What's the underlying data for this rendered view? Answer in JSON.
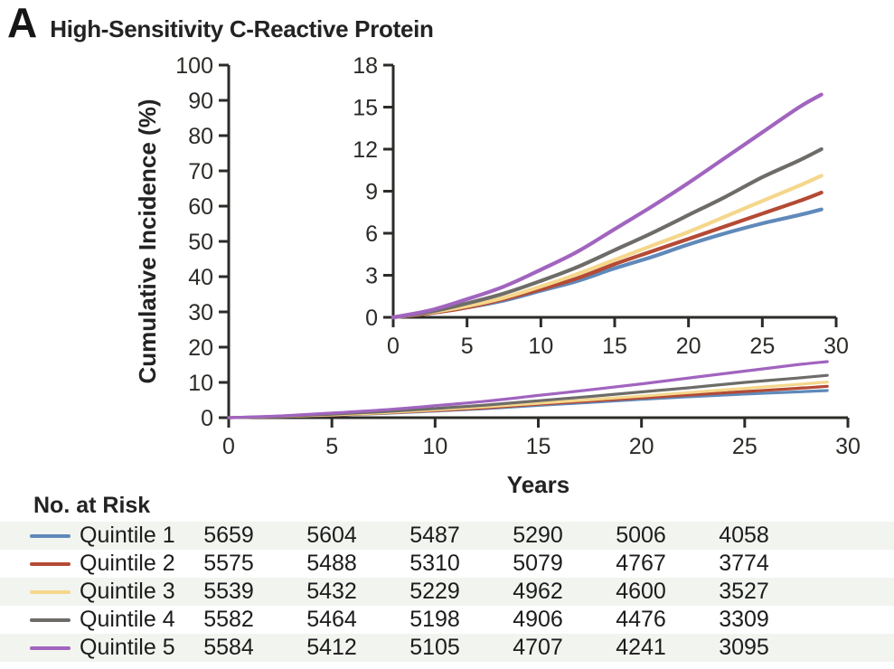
{
  "chart_data": {
    "type": "line",
    "panel_label": "A",
    "title": "High-Sensitivity C-Reactive Protein",
    "xlabel": "Years",
    "ylabel": "Cumulative Incidence (%)",
    "x_years": [
      0,
      2.5,
      5,
      7.5,
      10,
      12.5,
      15,
      17.5,
      20,
      22.5,
      25,
      27.5,
      29
    ],
    "series": [
      {
        "name": "Quintile 1",
        "color": "#6089ba",
        "values": [
          0,
          0.3,
          0.7,
          1.2,
          1.9,
          2.6,
          3.5,
          4.3,
          5.2,
          6.0,
          6.7,
          7.3,
          7.7
        ]
      },
      {
        "name": "Quintile 2",
        "color": "#b44a35",
        "values": [
          0,
          0.3,
          0.7,
          1.3,
          2.0,
          2.8,
          3.8,
          4.7,
          5.6,
          6.5,
          7.4,
          8.3,
          8.9
        ]
      },
      {
        "name": "Quintile 3",
        "color": "#f5d78c",
        "values": [
          0,
          0.35,
          0.8,
          1.4,
          2.2,
          3.1,
          4.1,
          5.1,
          6.1,
          7.2,
          8.3,
          9.4,
          10.1
        ]
      },
      {
        "name": "Quintile 4",
        "color": "#6e6c69",
        "values": [
          0,
          0.4,
          1.0,
          1.7,
          2.6,
          3.6,
          4.8,
          6.0,
          7.3,
          8.6,
          10.0,
          11.2,
          12.0
        ]
      },
      {
        "name": "Quintile 5",
        "color": "#a164bf",
        "values": [
          0,
          0.5,
          1.3,
          2.2,
          3.4,
          4.7,
          6.3,
          7.9,
          9.6,
          11.4,
          13.2,
          15.0,
          15.9
        ]
      }
    ],
    "main_axis": {
      "xlim": [
        0,
        30
      ],
      "ylim": [
        0,
        100
      ],
      "xticks": [
        0,
        5,
        10,
        15,
        20,
        25,
        30
      ],
      "yticks": [
        0,
        10,
        20,
        30,
        40,
        50,
        60,
        70,
        80,
        90,
        100
      ]
    },
    "inset_axis": {
      "xlim": [
        0,
        30
      ],
      "ylim": [
        0,
        18
      ],
      "xticks": [
        0,
        5,
        10,
        15,
        20,
        25,
        30
      ],
      "yticks": [
        0,
        3,
        6,
        9,
        12,
        15,
        18
      ]
    },
    "grid": "off",
    "axis_color": "#2b2b28"
  },
  "risk_table": {
    "header": "No. at Risk",
    "rows": [
      {
        "label": "Quintile 1",
        "counts": [
          "5659",
          "5604",
          "5487",
          "5290",
          "5006",
          "4058"
        ]
      },
      {
        "label": "Quintile 2",
        "counts": [
          "5575",
          "5488",
          "5310",
          "5079",
          "4767",
          "3774"
        ]
      },
      {
        "label": "Quintile 3",
        "counts": [
          "5539",
          "5432",
          "5229",
          "4962",
          "4600",
          "3527"
        ]
      },
      {
        "label": "Quintile 4",
        "counts": [
          "5582",
          "5464",
          "5198",
          "4906",
          "4476",
          "3309"
        ]
      },
      {
        "label": "Quintile 5",
        "counts": [
          "5584",
          "5412",
          "5105",
          "4707",
          "4241",
          "3095"
        ]
      }
    ],
    "stripe_color": "#f2f4f0"
  }
}
